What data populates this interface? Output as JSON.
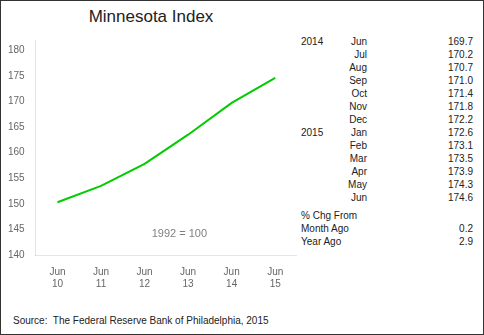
{
  "chart_data": {
    "type": "line",
    "title": "Minnesota Index",
    "categories": [
      "Jun\n10",
      "Jun\n11",
      "Jun\n12",
      "Jun\n13",
      "Jun\n14",
      "Jun\n15"
    ],
    "values": [
      150.3,
      153.5,
      157.8,
      163.5,
      169.7,
      174.6
    ],
    "color": "#00cc00",
    "ylim": [
      140,
      182
    ],
    "yticks": [
      140,
      145,
      150,
      155,
      160,
      165,
      170,
      175,
      180
    ],
    "grid": false,
    "annotation": "1992 = 100",
    "source": "Source:  The Federal Reserve Bank of Philadelphia, 2015",
    "table": [
      {
        "year": "2014",
        "rows": [
          [
            "Jun",
            "169.7"
          ],
          [
            "Jul",
            "170.2"
          ],
          [
            "Aug",
            "170.7"
          ],
          [
            "Sep",
            "171.0"
          ],
          [
            "Oct",
            "171.4"
          ],
          [
            "Nov",
            "171.8"
          ],
          [
            "Dec",
            "172.2"
          ]
        ]
      },
      {
        "year": "2015",
        "rows": [
          [
            "Jan",
            "172.6"
          ],
          [
            "Feb",
            "173.1"
          ],
          [
            "Mar",
            "173.5"
          ],
          [
            "Apr",
            "173.9"
          ],
          [
            "May",
            "174.3"
          ],
          [
            "Jun",
            "174.6"
          ]
        ]
      }
    ],
    "change": {
      "label": "% Chg From",
      "rows": [
        [
          "Month Ago",
          "0.2"
        ],
        [
          "Year Ago",
          "2.9"
        ]
      ]
    }
  }
}
